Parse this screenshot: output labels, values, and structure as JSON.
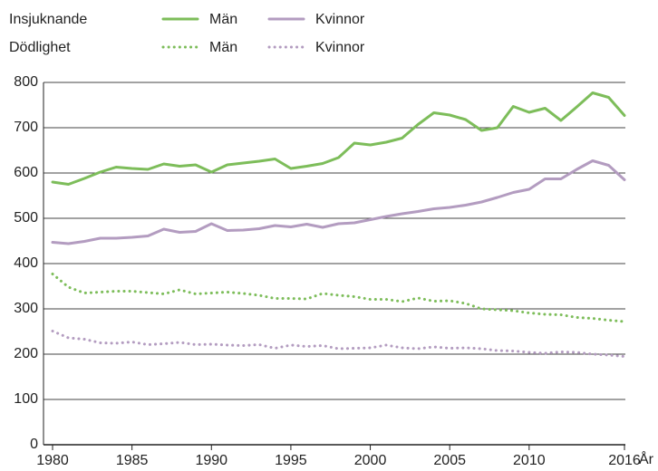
{
  "chart_data": {
    "type": "line",
    "x_label": "År",
    "x": [
      1980,
      1981,
      1982,
      1983,
      1984,
      1985,
      1986,
      1987,
      1988,
      1989,
      1990,
      1991,
      1992,
      1993,
      1994,
      1995,
      1996,
      1997,
      1998,
      1999,
      2000,
      2001,
      2002,
      2003,
      2004,
      2005,
      2006,
      2007,
      2008,
      2009,
      2010,
      2011,
      2012,
      2013,
      2014,
      2015,
      2016
    ],
    "xlim": [
      1980,
      2016
    ],
    "xticks": [
      1980,
      1985,
      1990,
      1995,
      2000,
      2005,
      2010,
      2016
    ],
    "ylim": [
      0,
      800
    ],
    "yticks": [
      0,
      100,
      200,
      300,
      400,
      500,
      600,
      700,
      800
    ],
    "grid": true,
    "series": [
      {
        "group": "Insjuknande",
        "name": "Män",
        "color": "#7dbd5a",
        "style": "solid",
        "values": [
          580,
          575,
          588,
          602,
          613,
          610,
          608,
          620,
          615,
          618,
          602,
          618,
          622,
          626,
          631,
          610,
          615,
          621,
          634,
          666,
          662,
          668,
          677,
          707,
          733,
          728,
          718,
          694,
          700,
          747,
          734,
          743,
          716,
          746,
          777,
          767,
          727
        ]
      },
      {
        "group": "Insjuknande",
        "name": "Kvinnor",
        "color": "#b39cc0",
        "style": "solid",
        "values": [
          447,
          444,
          449,
          456,
          456,
          458,
          461,
          476,
          469,
          471,
          488,
          473,
          474,
          477,
          484,
          481,
          487,
          480,
          488,
          490,
          497,
          504,
          510,
          515,
          521,
          524,
          529,
          536,
          546,
          557,
          564,
          587,
          587,
          608,
          627,
          617,
          585
        ]
      },
      {
        "group": "Dödlighet",
        "name": "Män",
        "color": "#7dbd5a",
        "style": "dotted",
        "values": [
          377,
          348,
          335,
          337,
          339,
          339,
          336,
          333,
          342,
          333,
          335,
          337,
          334,
          330,
          323,
          323,
          322,
          334,
          330,
          327,
          321,
          321,
          316,
          324,
          317,
          318,
          312,
          300,
          298,
          296,
          291,
          288,
          287,
          281,
          279,
          275,
          272
        ]
      },
      {
        "group": "Dödlighet",
        "name": "Kvinnor",
        "color": "#b39cc0",
        "style": "dotted",
        "values": [
          251,
          236,
          233,
          225,
          224,
          227,
          221,
          223,
          226,
          221,
          222,
          220,
          219,
          221,
          213,
          220,
          217,
          219,
          212,
          213,
          214,
          220,
          214,
          212,
          216,
          213,
          214,
          212,
          208,
          207,
          204,
          202,
          205,
          204,
          200,
          198,
          195
        ]
      }
    ]
  }
}
